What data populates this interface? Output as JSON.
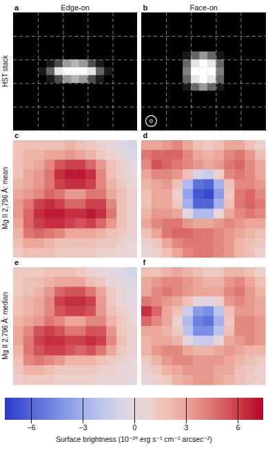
{
  "figure": {
    "columns": [
      "Edge-on",
      "Face-on"
    ],
    "rows": [
      "HST stack",
      "Mg II 2,796 Å: mean",
      "Mg II 2,796 Å: median"
    ]
  },
  "chart_data": [
    {
      "type": "image",
      "title": "a",
      "cells": [
        [
          0,
          0,
          0,
          0,
          0,
          0,
          0,
          0,
          0,
          0,
          0,
          0,
          0,
          0,
          0
        ],
        [
          0,
          0,
          0,
          0,
          0,
          0,
          0,
          0,
          0,
          0,
          0,
          0,
          0,
          0,
          0
        ],
        [
          0,
          0,
          0,
          0,
          0,
          0,
          0,
          0,
          0,
          0,
          0,
          0,
          0,
          0,
          0
        ],
        [
          0,
          0,
          0,
          0,
          0,
          0,
          0,
          0,
          0,
          0,
          0,
          0,
          0,
          0,
          0
        ],
        [
          0,
          0,
          0,
          0,
          0,
          0,
          0,
          0,
          0,
          0,
          0,
          0,
          0,
          0,
          0
        ],
        [
          0,
          0,
          0,
          0,
          0,
          0,
          0,
          0,
          0,
          0,
          0,
          0,
          0,
          0,
          0
        ],
        [
          0,
          0,
          0,
          0,
          0.1,
          0.3,
          0.6,
          0.7,
          0.6,
          0.3,
          0.1,
          0,
          0,
          0,
          0
        ],
        [
          0,
          0,
          0,
          0.1,
          0.4,
          0.9,
          1,
          1,
          1,
          0.9,
          0.4,
          0.1,
          0,
          0,
          0
        ],
        [
          0,
          0,
          0,
          0,
          0.1,
          0.3,
          0.6,
          0.7,
          0.6,
          0.3,
          0.1,
          0,
          0,
          0,
          0
        ],
        [
          0,
          0,
          0,
          0,
          0,
          0,
          0,
          0,
          0,
          0,
          0,
          0,
          0,
          0,
          0
        ],
        [
          0,
          0,
          0,
          0,
          0,
          0,
          0,
          0,
          0,
          0,
          0,
          0,
          0,
          0,
          0
        ],
        [
          0,
          0,
          0,
          0,
          0,
          0,
          0,
          0,
          0,
          0,
          0,
          0,
          0,
          0,
          0
        ],
        [
          0,
          0,
          0,
          0,
          0,
          0,
          0,
          0,
          0,
          0,
          0,
          0,
          0,
          0,
          0
        ],
        [
          0,
          0,
          0,
          0,
          0,
          0,
          0,
          0,
          0,
          0,
          0,
          0,
          0,
          0,
          0
        ],
        [
          0,
          0,
          0,
          0,
          0,
          0,
          0,
          0,
          0,
          0,
          0,
          0,
          0,
          0,
          0
        ]
      ]
    },
    {
      "type": "image",
      "title": "b",
      "cells": [
        [
          0,
          0,
          0,
          0,
          0,
          0,
          0,
          0,
          0,
          0,
          0,
          0,
          0,
          0,
          0
        ],
        [
          0,
          0,
          0,
          0,
          0,
          0,
          0,
          0,
          0,
          0,
          0,
          0,
          0,
          0,
          0
        ],
        [
          0,
          0,
          0,
          0,
          0,
          0,
          0,
          0,
          0,
          0,
          0,
          0,
          0,
          0,
          0
        ],
        [
          0,
          0,
          0,
          0,
          0,
          0,
          0,
          0,
          0,
          0,
          0,
          0,
          0,
          0,
          0
        ],
        [
          0,
          0,
          0,
          0,
          0,
          0,
          0,
          0,
          0,
          0,
          0,
          0,
          0,
          0,
          0
        ],
        [
          0,
          0,
          0,
          0,
          0,
          0.1,
          0.4,
          0.6,
          0.4,
          0.1,
          0,
          0,
          0,
          0,
          0
        ],
        [
          0,
          0,
          0,
          0,
          0,
          0.4,
          0.9,
          1,
          0.9,
          0.4,
          0,
          0,
          0,
          0,
          0
        ],
        [
          0,
          0,
          0,
          0,
          0,
          0.5,
          1,
          1,
          1,
          0.5,
          0,
          0,
          0,
          0,
          0
        ],
        [
          0,
          0,
          0,
          0,
          0,
          0.4,
          0.9,
          1,
          0.9,
          0.4,
          0,
          0,
          0,
          0,
          0
        ],
        [
          0,
          0,
          0,
          0,
          0,
          0.1,
          0.4,
          0.6,
          0.4,
          0.1,
          0,
          0,
          0,
          0,
          0
        ],
        [
          0,
          0,
          0,
          0,
          0,
          0,
          0,
          0,
          0,
          0,
          0,
          0,
          0,
          0,
          0
        ],
        [
          0,
          0,
          0,
          0,
          0,
          0,
          0,
          0,
          0,
          0,
          0,
          0,
          0,
          0,
          0
        ],
        [
          0,
          0,
          0,
          0,
          0,
          0,
          0,
          0,
          0,
          0,
          0,
          0,
          0,
          0,
          0
        ],
        [
          0,
          0,
          0,
          0,
          0,
          0,
          0,
          0,
          0,
          0,
          0,
          0,
          0,
          0,
          0
        ],
        [
          0,
          0,
          0,
          0,
          0,
          0,
          0,
          0,
          0,
          0,
          0,
          0,
          0,
          0,
          0
        ]
      ]
    },
    {
      "type": "heatmap",
      "title": "c",
      "cells": [
        [
          2,
          2,
          2,
          2,
          2,
          2.5,
          2,
          1.5,
          1,
          0.5,
          -0.5,
          -1
        ],
        [
          2,
          2.5,
          2.5,
          3,
          3,
          3.5,
          3,
          2.5,
          1.5,
          1,
          0,
          -0.5
        ],
        [
          2,
          2.5,
          3,
          4,
          5.5,
          6,
          6,
          5,
          3.5,
          2,
          1,
          0
        ],
        [
          2,
          3,
          3.5,
          4.5,
          6.5,
          7,
          7,
          6.5,
          4,
          2,
          1,
          0.5
        ],
        [
          2.5,
          3,
          3.5,
          4.5,
          6,
          6.5,
          6.5,
          6,
          4,
          2.5,
          1.5,
          0.5
        ],
        [
          3,
          3.5,
          4,
          5,
          4.5,
          3.5,
          3.5,
          4.5,
          4.5,
          3,
          2,
          1
        ],
        [
          3.5,
          4.5,
          6,
          6.5,
          6,
          5,
          5,
          6,
          6,
          4,
          2,
          1
        ],
        [
          3.5,
          5,
          6.5,
          7,
          7,
          6.5,
          6.5,
          7,
          6.5,
          4.5,
          2,
          1
        ],
        [
          3,
          5,
          6,
          6.5,
          6.5,
          6,
          5.5,
          6,
          5,
          3.5,
          2,
          1
        ],
        [
          2.5,
          4.5,
          5,
          4.5,
          4,
          3,
          3,
          3,
          2.5,
          2,
          1.5,
          1
        ],
        [
          2,
          3,
          3,
          2.5,
          2,
          2,
          2,
          2,
          1.5,
          1.5,
          1,
          0.5
        ],
        [
          1.5,
          2,
          2,
          2,
          1.5,
          1.5,
          1.5,
          1.5,
          1,
          1,
          0.5,
          0.5
        ]
      ]
    },
    {
      "type": "heatmap",
      "title": "d",
      "cells": [
        [
          3,
          3,
          3.5,
          4,
          3,
          2,
          1.5,
          2,
          3,
          3,
          2,
          1
        ],
        [
          4.5,
          5,
          5,
          5,
          4,
          3,
          2.5,
          3,
          4,
          4.5,
          3.5,
          2
        ],
        [
          4,
          5.5,
          5,
          4.5,
          4,
          3.5,
          3,
          3.5,
          4.5,
          5,
          4,
          3
        ],
        [
          3,
          4,
          4,
          3.5,
          2,
          -1,
          -1.5,
          1,
          4,
          4.5,
          4,
          3
        ],
        [
          2.5,
          3,
          3.5,
          2,
          -2.5,
          -5.5,
          -6,
          -3,
          2,
          4,
          4,
          3.5
        ],
        [
          2,
          3,
          3,
          1,
          -3.5,
          -6.5,
          -7,
          -4,
          1.5,
          4.5,
          5,
          4
        ],
        [
          2,
          3,
          3,
          1.5,
          -3,
          -6,
          -6,
          -3,
          2,
          4.5,
          5,
          4.5
        ],
        [
          2.5,
          3.5,
          3.5,
          3,
          0,
          -2.5,
          -2.5,
          0.5,
          3,
          4,
          4.5,
          4
        ],
        [
          3,
          4,
          4.5,
          4.5,
          3.5,
          3,
          3,
          3.5,
          4,
          3.5,
          3,
          3
        ],
        [
          2,
          3,
          4.5,
          5,
          5,
          4.5,
          4.5,
          4,
          3.5,
          3,
          2.5,
          2
        ],
        [
          1,
          1.5,
          3,
          4,
          4.5,
          4.5,
          4.5,
          4,
          3.5,
          2.5,
          2,
          1.5
        ],
        [
          0.5,
          1,
          2,
          3,
          4,
          4.5,
          4.5,
          4,
          3.5,
          2.5,
          2,
          1
        ]
      ]
    },
    {
      "type": "heatmap",
      "title": "e",
      "cells": [
        [
          1.5,
          1.5,
          1.5,
          2,
          2,
          2,
          1.5,
          1,
          0.5,
          0,
          -0.5,
          -1
        ],
        [
          1.5,
          2,
          2,
          2.5,
          3,
          3,
          3,
          2,
          1.5,
          0.5,
          0,
          -0.5
        ],
        [
          1.5,
          2,
          2.5,
          3.5,
          5,
          5.5,
          5.5,
          4.5,
          3,
          1.5,
          0.5,
          0
        ],
        [
          2,
          2.5,
          3,
          4,
          6,
          6.5,
          6.5,
          6,
          3.5,
          1.5,
          0.5,
          0
        ],
        [
          2,
          2.5,
          3,
          4,
          5.5,
          6,
          6,
          5.5,
          3.5,
          2,
          1,
          0.5
        ],
        [
          2.5,
          3,
          3.5,
          4.5,
          4,
          3,
          3,
          4,
          4,
          2.5,
          1.5,
          0.5
        ],
        [
          3,
          4,
          5.5,
          6,
          5.5,
          4.5,
          4.5,
          5.5,
          5.5,
          3.5,
          1.5,
          1
        ],
        [
          3,
          4.5,
          6,
          6.5,
          6.5,
          6,
          6,
          6.5,
          6,
          4,
          2,
          1
        ],
        [
          2.5,
          4.5,
          5.5,
          6,
          6,
          5.5,
          5,
          5.5,
          4.5,
          3,
          1.5,
          1
        ],
        [
          2,
          4,
          4.5,
          4,
          3.5,
          2.5,
          2.5,
          2.5,
          2,
          1.5,
          1,
          0.5
        ],
        [
          1.5,
          2.5,
          2.5,
          2,
          1.5,
          1.5,
          1.5,
          1.5,
          1,
          1,
          0.5,
          0.5
        ],
        [
          1,
          1.5,
          1.5,
          1.5,
          1,
          1,
          1,
          1,
          0.5,
          0.5,
          0.5,
          0
        ]
      ]
    },
    {
      "type": "heatmap",
      "title": "f",
      "cells": [
        [
          2,
          2,
          2.5,
          3,
          2.5,
          2,
          1.5,
          1.5,
          2.5,
          2.5,
          2,
          1
        ],
        [
          3,
          3.5,
          4,
          4,
          3.5,
          3,
          2.5,
          2.5,
          3.5,
          4,
          3,
          2
        ],
        [
          3,
          4,
          4.5,
          4,
          3.5,
          3,
          3,
          3,
          4,
          4.5,
          3.5,
          2.5
        ],
        [
          4.5,
          4,
          3.5,
          3,
          2,
          0,
          -0.5,
          1,
          3.5,
          4,
          3.5,
          3
        ],
        [
          6.5,
          5,
          3,
          2,
          -1.5,
          -4,
          -4.5,
          -2,
          2,
          3.5,
          3.5,
          3
        ],
        [
          5,
          4,
          3,
          1,
          -2.5,
          -5,
          -5.5,
          -3,
          1.5,
          4,
          4,
          3.5
        ],
        [
          3,
          3,
          2.5,
          1.5,
          -2,
          -4.5,
          -4.5,
          -2,
          2,
          4,
          4,
          3.5
        ],
        [
          2.5,
          3,
          3,
          2.5,
          0.5,
          -1.5,
          -1.5,
          0.5,
          3,
          3.5,
          4,
          3.5
        ],
        [
          2.5,
          3.5,
          4,
          4,
          3,
          2.5,
          2.5,
          3,
          3.5,
          3,
          2.5,
          2.5
        ],
        [
          1.5,
          2.5,
          3.5,
          4,
          4,
          3.5,
          3.5,
          3.5,
          3,
          2.5,
          2,
          1.5
        ],
        [
          1,
          1.5,
          2.5,
          3,
          3.5,
          3.5,
          3.5,
          3,
          3,
          2,
          1.5,
          1
        ],
        [
          0.5,
          1,
          1.5,
          2.5,
          3,
          3.5,
          3.5,
          3,
          2.5,
          2,
          1.5,
          1
        ]
      ]
    }
  ],
  "colorbar": {
    "label": "Surface brightness (10⁻²⁰ erg s⁻¹ cm⁻² arcsec⁻²)",
    "range": [
      -7.5,
      7.5
    ],
    "ticks": [
      {
        "value": -6,
        "label": "−6"
      },
      {
        "value": -3,
        "label": "−3"
      },
      0,
      3,
      6
    ]
  }
}
